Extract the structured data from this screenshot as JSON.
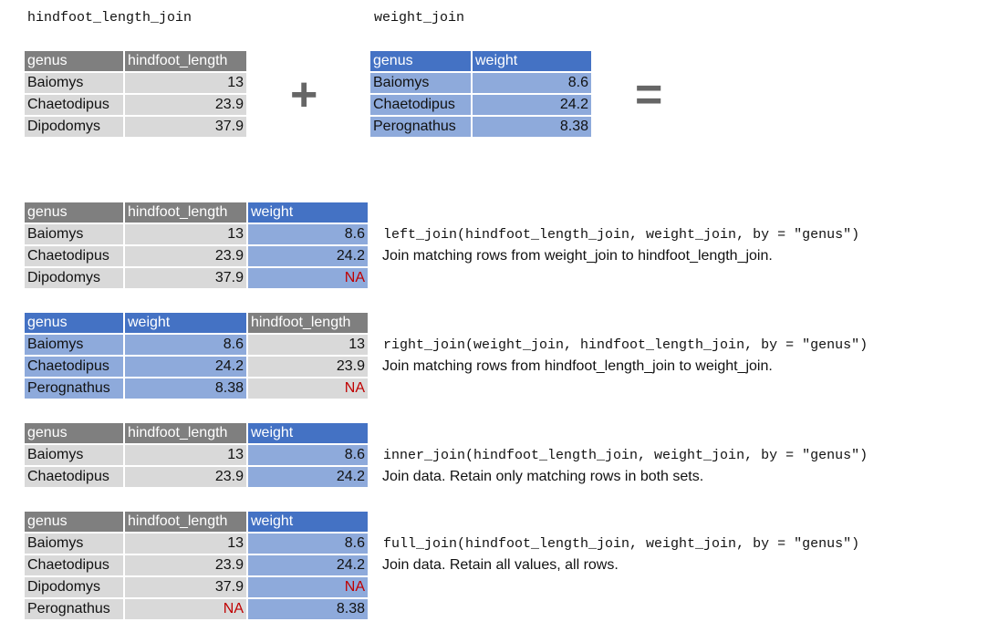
{
  "inputs": {
    "hindfoot": {
      "name": "hindfoot_length_join",
      "columns": [
        {
          "label": "genus",
          "color": "gray",
          "align": "left"
        },
        {
          "label": "hindfoot_length",
          "color": "gray",
          "align": "right"
        }
      ],
      "rows": [
        [
          "Baiomys",
          "13"
        ],
        [
          "Chaetodipus",
          "23.9"
        ],
        [
          "Dipodomys",
          "37.9"
        ]
      ]
    },
    "weight": {
      "name": "weight_join",
      "columns": [
        {
          "label": "genus",
          "color": "blue",
          "align": "left"
        },
        {
          "label": "weight",
          "color": "blue",
          "align": "right"
        }
      ],
      "rows": [
        [
          "Baiomys",
          "8.6"
        ],
        [
          "Chaetodipus",
          "24.2"
        ],
        [
          "Perognathus",
          "8.38"
        ]
      ]
    },
    "plus_symbol": "+",
    "equals_symbol": "="
  },
  "joins": [
    {
      "code": "left_join(hindfoot_length_join, weight_join, by = \"genus\")",
      "description": "Join matching rows from weight_join to hindfoot_length_join.",
      "columns": [
        {
          "label": "genus",
          "color": "gray",
          "align": "left"
        },
        {
          "label": "hindfoot_length",
          "color": "gray",
          "align": "right"
        },
        {
          "label": "weight",
          "color": "blue",
          "align": "right"
        }
      ],
      "rows": [
        [
          "Baiomys",
          "13",
          "8.6"
        ],
        [
          "Chaetodipus",
          "23.9",
          "24.2"
        ],
        [
          "Dipodomys",
          "37.9",
          "NA"
        ]
      ]
    },
    {
      "code": "right_join(weight_join, hindfoot_length_join, by = \"genus\")",
      "description": "Join matching rows from hindfoot_length_join to weight_join.",
      "columns": [
        {
          "label": "genus",
          "color": "blue",
          "align": "left"
        },
        {
          "label": "weight",
          "color": "blue",
          "align": "right"
        },
        {
          "label": "hindfoot_length",
          "color": "gray",
          "align": "right"
        }
      ],
      "rows": [
        [
          "Baiomys",
          "8.6",
          "13"
        ],
        [
          "Chaetodipus",
          "24.2",
          "23.9"
        ],
        [
          "Perognathus",
          "8.38",
          "NA"
        ]
      ]
    },
    {
      "code": "inner_join(hindfoot_length_join, weight_join, by = \"genus\")",
      "description": "Join data. Retain only matching rows in both sets.",
      "columns": [
        {
          "label": "genus",
          "color": "gray",
          "align": "left"
        },
        {
          "label": "hindfoot_length",
          "color": "gray",
          "align": "right"
        },
        {
          "label": "weight",
          "color": "blue",
          "align": "right"
        }
      ],
      "rows": [
        [
          "Baiomys",
          "13",
          "8.6"
        ],
        [
          "Chaetodipus",
          "23.9",
          "24.2"
        ]
      ]
    },
    {
      "code": "full_join(hindfoot_length_join, weight_join, by = \"genus\")",
      "description": "Join data. Retain all values, all rows.",
      "columns": [
        {
          "label": "genus",
          "color": "gray",
          "align": "left"
        },
        {
          "label": "hindfoot_length",
          "color": "gray",
          "align": "right"
        },
        {
          "label": "weight",
          "color": "blue",
          "align": "right"
        }
      ],
      "rows": [
        [
          "Baiomys",
          "13",
          "8.6"
        ],
        [
          "Chaetodipus",
          "23.9",
          "24.2"
        ],
        [
          "Dipodomys",
          "37.9",
          "NA"
        ],
        [
          "Perognathus",
          "NA",
          "8.38"
        ]
      ]
    }
  ],
  "colors": {
    "gray_header": "#7f7f7f",
    "gray_cell": "#d9d9d9",
    "blue_header": "#4472c4",
    "blue_cell": "#8eaadb",
    "na_text": "#c00000"
  }
}
